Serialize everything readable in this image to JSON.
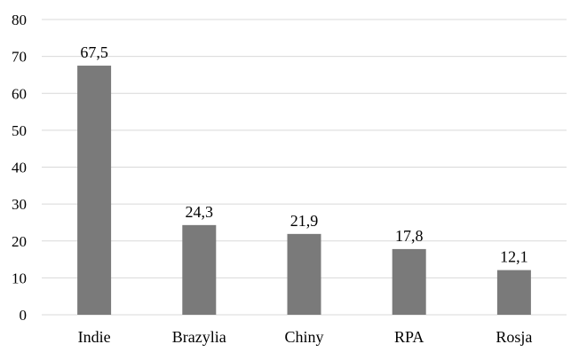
{
  "chart_data": {
    "type": "bar",
    "categories": [
      "Indie",
      "Brazylia",
      "Chiny",
      "RPA",
      "Rosja"
    ],
    "values": [
      67.5,
      24.3,
      21.9,
      17.8,
      12.1
    ],
    "value_labels": [
      "67,5",
      "24,3",
      "21,9",
      "17,8",
      "12,1"
    ],
    "y_ticks": [
      "0",
      "10",
      "20",
      "30",
      "40",
      "50",
      "60",
      "70",
      "80"
    ],
    "ylim": [
      0,
      80
    ],
    "grid": true,
    "bar_color": "#7a7a7a",
    "title": "",
    "xlabel": "",
    "ylabel": ""
  }
}
